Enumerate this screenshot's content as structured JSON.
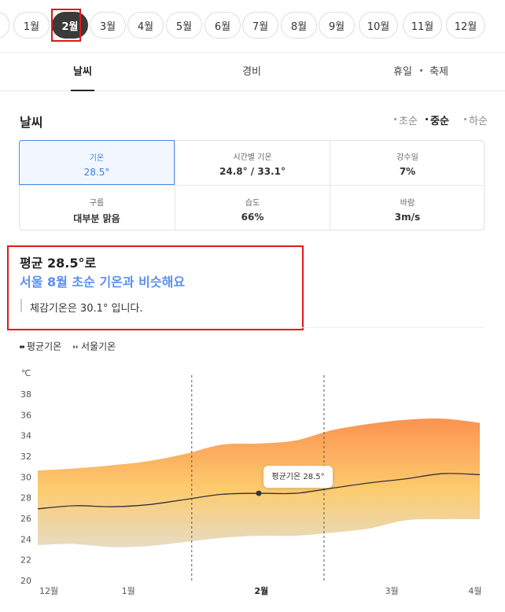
{
  "months": [
    "1월",
    "2월",
    "3월",
    "4월",
    "5월",
    "6월",
    "7월",
    "8월",
    "9월",
    "10월",
    "11월",
    "12월"
  ],
  "selected_month_index": 1,
  "tabs": [
    "날씨",
    "경비",
    "휴일",
    "축제"
  ],
  "section_title": "날씨",
  "periods": [
    "초순",
    "중순",
    "하순"
  ],
  "selected_period_index": 1,
  "cells": [
    {
      "label": "기온",
      "value": "28.5°"
    },
    {
      "label": "시간별 기온",
      "value": "24.8° / 33.1°"
    },
    {
      "label": "강수일",
      "value": "7%"
    },
    {
      "label": "구름",
      "value": "대부분 맑음"
    },
    {
      "label": "습도",
      "value": "66%"
    },
    {
      "label": "바람",
      "value": "3m/s"
    }
  ],
  "summary": {
    "headline": "평균 28.5°로",
    "comparison": "서울 8월 초순 기온과 비슷해요",
    "note": "체감기온은 30.1° 입니다."
  },
  "chart_data": {
    "type": "line",
    "y_unit": "℃",
    "x": [
      0,
      1,
      2,
      3,
      4,
      5,
      6,
      7,
      8,
      9,
      10,
      11,
      12
    ],
    "xlim": [
      0,
      12
    ],
    "xticks": [
      {
        "value": 0.3,
        "label": "12월"
      },
      {
        "value": 2.46,
        "label": "1월"
      },
      {
        "value": 6.07,
        "label": "2월"
      },
      {
        "value": 9.61,
        "label": "3월"
      },
      {
        "value": 11.87,
        "label": "4월"
      }
    ],
    "ylim": [
      20,
      38
    ],
    "yticks": [
      20,
      22,
      24,
      26,
      28,
      30,
      32,
      34,
      36,
      38
    ],
    "series": [
      {
        "name": "평균기온",
        "color": "#333333",
        "values": [
          27.0,
          27.3,
          27.2,
          27.4,
          27.9,
          28.4,
          28.5,
          28.5,
          29.0,
          29.5,
          29.9,
          30.4,
          30.3
        ]
      },
      {
        "name": "서울기온",
        "color": "#fb9a55",
        "high": [
          30.7,
          30.9,
          31.2,
          31.6,
          32.3,
          33.2,
          33.3,
          33.6,
          34.6,
          35.2,
          35.6,
          35.7,
          35.3
        ],
        "low": [
          23.5,
          23.6,
          23.3,
          23.4,
          23.8,
          24.2,
          24.4,
          24.4,
          24.7,
          25.1,
          25.9,
          26.0,
          26.0
        ]
      }
    ],
    "highlight_x": [
      4.18,
      7.77
    ],
    "marker": {
      "x": 6,
      "value": 28.5
    },
    "annotation": "평균기온 28.5°"
  }
}
